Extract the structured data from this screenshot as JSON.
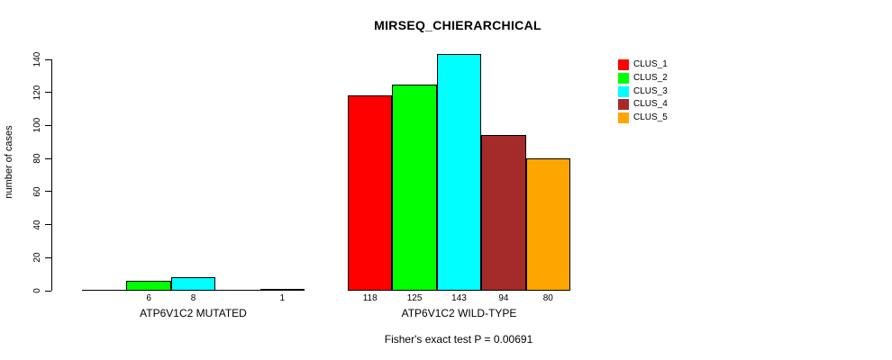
{
  "chart_data": {
    "type": "bar",
    "title": "MIRSEQ_CHIERARCHICAL",
    "ylabel": "number of cases",
    "xlabel": "",
    "ylim": [
      0,
      140
    ],
    "yticks": [
      0,
      20,
      40,
      60,
      80,
      100,
      120,
      140
    ],
    "grid": false,
    "legend_position": "top-right",
    "categories": [
      "CLUS_1",
      "CLUS_2",
      "CLUS_3",
      "CLUS_4",
      "CLUS_5"
    ],
    "colors": [
      "#FF0000",
      "#00FF00",
      "#00FFFF",
      "#A52A2A",
      "#FFA500"
    ],
    "groups": [
      {
        "label": "ATP6V1C2 MUTATED",
        "values": [
          0,
          6,
          8,
          0,
          1
        ],
        "bar_labels": [
          "",
          "6",
          "8",
          "",
          "1"
        ]
      },
      {
        "label": "ATP6V1C2 WILD-TYPE",
        "values": [
          118,
          125,
          143,
          94,
          80
        ],
        "bar_labels": [
          "118",
          "125",
          "143",
          "94",
          "80"
        ]
      }
    ],
    "legend_entries": [
      "CLUS_1",
      "CLUS_2",
      "CLUS_3",
      "CLUS_4",
      "CLUS_5"
    ],
    "annotation": "Fisher's exact test P = 0.00691"
  }
}
